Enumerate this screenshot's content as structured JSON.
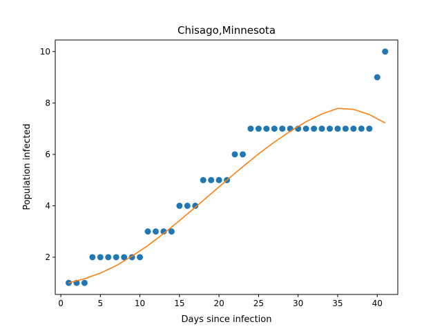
{
  "chart_data": {
    "type": "scatter",
    "title": "Chisago,Minnesota",
    "xlabel": "Days since infection",
    "ylabel": "Population infected",
    "xlim": [
      -0.7,
      42.6
    ],
    "ylim": [
      0.55,
      10.45
    ],
    "xticks": [
      0,
      5,
      10,
      15,
      20,
      25,
      30,
      35,
      40
    ],
    "yticks": [
      2,
      4,
      6,
      8,
      10
    ],
    "grid": false,
    "series": [
      {
        "kind": "scatter",
        "color": "#1f77b4",
        "x": [
          1,
          2,
          3,
          4,
          5,
          6,
          7,
          8,
          9,
          10,
          11,
          12,
          13,
          14,
          15,
          16,
          17,
          18,
          19,
          20,
          21,
          22,
          23,
          24,
          25,
          26,
          27,
          28,
          29,
          30,
          31,
          32,
          33,
          34,
          35,
          36,
          37,
          38,
          39,
          40,
          41
        ],
        "y": [
          1,
          1,
          1,
          2,
          2,
          2,
          2,
          2,
          2,
          2,
          3,
          3,
          3,
          3,
          4,
          4,
          4,
          5,
          5,
          5,
          5,
          6,
          6,
          7,
          7,
          7,
          7,
          7,
          7,
          7,
          7,
          7,
          7,
          7,
          7,
          7,
          7,
          7,
          7,
          9,
          10
        ]
      },
      {
        "kind": "line",
        "color": "#ff7f0e",
        "x": [
          1,
          3,
          5,
          7,
          9,
          11,
          13,
          15,
          17,
          19,
          21,
          23,
          25,
          27,
          29,
          31,
          33,
          35,
          37,
          39,
          41
        ],
        "y": [
          1.0,
          1.16,
          1.38,
          1.67,
          2.04,
          2.45,
          2.92,
          3.42,
          3.94,
          4.47,
          5.0,
          5.52,
          6.02,
          6.48,
          6.9,
          7.27,
          7.57,
          7.79,
          7.75,
          7.55,
          7.22
        ]
      }
    ]
  }
}
